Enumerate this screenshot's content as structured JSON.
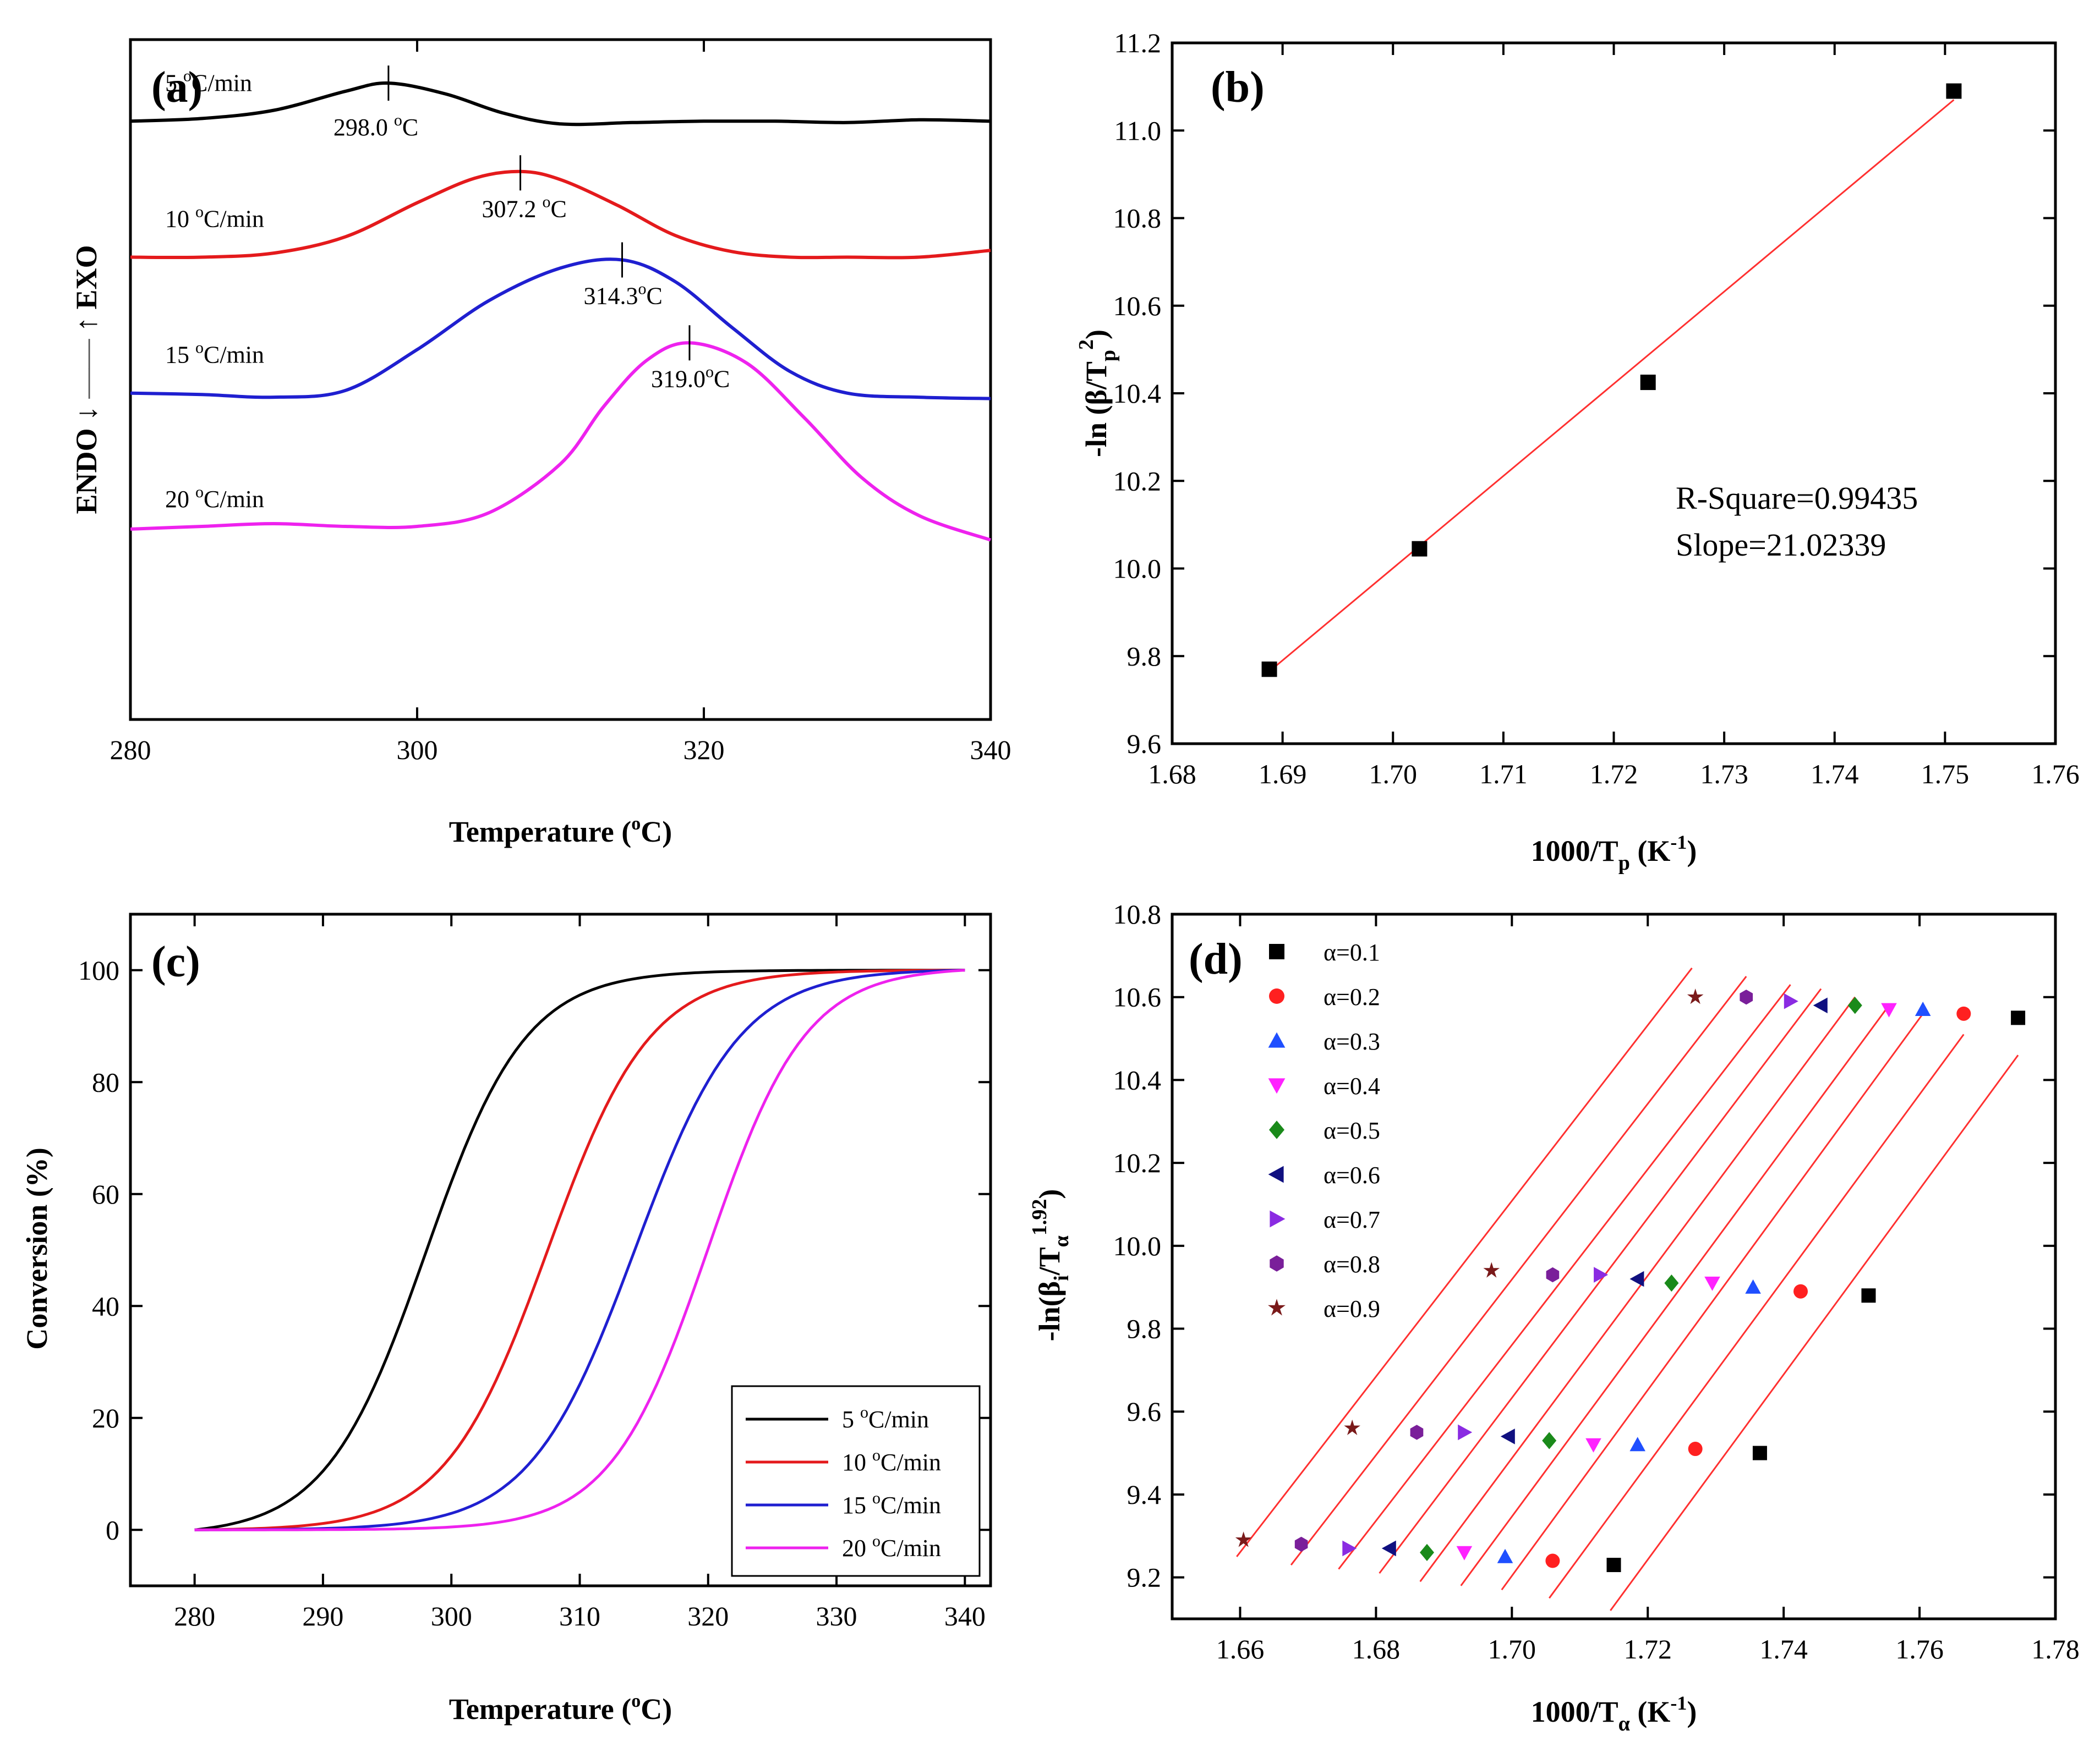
{
  "chart_data": [
    {
      "id": "a",
      "panel_label": "(a)",
      "type": "line",
      "xlabel": "Temperature (°C)",
      "ylabel": "ENDO↓ — ↑EXO",
      "ylabel_left": "ENDO",
      "ylabel_right": "EXO",
      "xlim": [
        280,
        340
      ],
      "xticks": [
        280,
        300,
        320,
        340
      ],
      "ylim": [
        -0.5,
        4.5
      ],
      "yticks_visible": false,
      "series": [
        {
          "name": "5 °C/min",
          "color": "#000000",
          "baseline": 3.9,
          "peak_x": 298.0,
          "peak_height": 0.28,
          "width": 7.5,
          "peak_label": "298.0 °C",
          "points": [
            [
              280,
              3.9
            ],
            [
              285,
              3.92
            ],
            [
              290,
              3.98
            ],
            [
              295,
              4.12
            ],
            [
              298,
              4.18
            ],
            [
              302,
              4.1
            ],
            [
              306,
              3.96
            ],
            [
              310,
              3.88
            ],
            [
              315,
              3.89
            ],
            [
              320,
              3.9
            ],
            [
              325,
              3.9
            ],
            [
              330,
              3.89
            ],
            [
              335,
              3.91
            ],
            [
              340,
              3.9
            ]
          ]
        },
        {
          "name": "10 °C/min",
          "color": "#e41a1c",
          "baseline": 2.9,
          "peak_x": 307.2,
          "peak_height": 0.62,
          "width": 8.5,
          "peak_label": "307.2 °C",
          "points": [
            [
              280,
              2.9
            ],
            [
              285,
              2.9
            ],
            [
              290,
              2.93
            ],
            [
              295,
              3.05
            ],
            [
              300,
              3.3
            ],
            [
              304,
              3.48
            ],
            [
              307.2,
              3.53
            ],
            [
              310,
              3.47
            ],
            [
              314,
              3.28
            ],
            [
              318,
              3.06
            ],
            [
              322,
              2.94
            ],
            [
              326,
              2.9
            ],
            [
              330,
              2.9
            ],
            [
              335,
              2.9
            ],
            [
              340,
              2.95
            ]
          ]
        },
        {
          "name": "15 °C/min",
          "color": "#1f1fd0",
          "baseline": 1.9,
          "peak_x": 314.3,
          "peak_height": 0.98,
          "width": 9.5,
          "peak_label": "314.3°C",
          "points": [
            [
              280,
              1.9
            ],
            [
              285,
              1.89
            ],
            [
              290,
              1.87
            ],
            [
              295,
              1.92
            ],
            [
              300,
              2.22
            ],
            [
              305,
              2.58
            ],
            [
              310,
              2.82
            ],
            [
              314.3,
              2.88
            ],
            [
              318,
              2.72
            ],
            [
              322,
              2.38
            ],
            [
              326,
              2.06
            ],
            [
              330,
              1.9
            ],
            [
              335,
              1.87
            ],
            [
              340,
              1.86
            ]
          ]
        },
        {
          "name": "20 °C/min",
          "color": "#ee22ee",
          "baseline": 0.9,
          "peak_x": 319.0,
          "peak_height": 1.37,
          "width": 10.5,
          "peak_label": "319.0°C",
          "points": [
            [
              280,
              0.9
            ],
            [
              285,
              0.92
            ],
            [
              290,
              0.94
            ],
            [
              295,
              0.92
            ],
            [
              300,
              0.92
            ],
            [
              305,
              1.02
            ],
            [
              310,
              1.38
            ],
            [
              313,
              1.8
            ],
            [
              316,
              2.14
            ],
            [
              319,
              2.27
            ],
            [
              323,
              2.12
            ],
            [
              327,
              1.72
            ],
            [
              331,
              1.28
            ],
            [
              335,
              1.0
            ],
            [
              340,
              0.82
            ]
          ]
        }
      ]
    },
    {
      "id": "b",
      "panel_label": "(b)",
      "type": "scatter",
      "xlabel": "1000/T",
      "xlabel_sub": "p",
      "xlabel_unit": " (K",
      "xlabel_unit_sup": "-1",
      "xlabel_close": ")",
      "ylabel": "-ln (β/T",
      "ylabel_sub": "p",
      "ylabel_sup": "2",
      "ylabel_close": ")",
      "xlim": [
        1.68,
        1.76
      ],
      "xticks": [
        "1.68",
        "1.69",
        "1.70",
        "1.71",
        "1.72",
        "1.73",
        "1.74",
        "1.75",
        "1.76"
      ],
      "ylim": [
        9.6,
        11.2
      ],
      "yticks": [
        "9.6",
        "9.8",
        "10.0",
        "10.2",
        "10.4",
        "10.6",
        "10.8",
        "11.0",
        "11.2"
      ],
      "x": [
        1.6888,
        1.7024,
        1.7231,
        1.7508
      ],
      "y": [
        9.77,
        10.045,
        10.425,
        11.09
      ],
      "fit": {
        "x": [
          1.6888,
          1.7508
        ],
        "y": [
          9.765,
          11.07
        ],
        "color": "#ff3030"
      },
      "annotations": [
        "R-Square=0.99435",
        "Slope=21.02339"
      ]
    },
    {
      "id": "c",
      "panel_label": "(c)",
      "type": "line",
      "xlabel": "Temperature (°C)",
      "ylabel": "Conversion (%)",
      "xlim": [
        275,
        342
      ],
      "xticks": [
        280,
        290,
        300,
        310,
        320,
        330,
        340
      ],
      "ylim": [
        -10,
        110
      ],
      "yticks": [
        0,
        20,
        40,
        60,
        80,
        100
      ],
      "legend_position": "bottom-right",
      "series": [
        {
          "name": "5 °C/min",
          "color": "#000000",
          "midpoint": 298.0,
          "scale": 3.9
        },
        {
          "name": "10 °C/min",
          "color": "#e41a1c",
          "midpoint": 307.5,
          "scale": 4.0
        },
        {
          "name": "15 °C/min",
          "color": "#1f1fd0",
          "midpoint": 314.3,
          "scale": 4.1
        },
        {
          "name": "20 °C/min",
          "color": "#ee22ee",
          "midpoint": 320.0,
          "scale": 3.8
        }
      ]
    },
    {
      "id": "d",
      "panel_label": "(d)",
      "type": "scatter",
      "xlabel": "1000/T",
      "xlabel_sub": "α",
      "xlabel_unit": " (K",
      "xlabel_unit_sup": "-1",
      "xlabel_close": ")",
      "ylabel": "-ln(β",
      "ylabel_sub": "i",
      "ylabel_mid": "/T",
      "ylabel_sub2": "α",
      "ylabel_sup": "1.92",
      "ylabel_close": ")",
      "xlim": [
        1.65,
        1.78
      ],
      "xticks": [
        "1.66",
        "1.68",
        "1.70",
        "1.72",
        "1.74",
        "1.76",
        "1.78"
      ],
      "ylim": [
        9.1,
        10.8
      ],
      "yticks": [
        "9.2",
        "9.4",
        "9.6",
        "9.8",
        "10.0",
        "10.2",
        "10.4",
        "10.6",
        "10.8"
      ],
      "legend_position": "top-left",
      "series": [
        {
          "name": "α=0.1",
          "color": "#000000",
          "marker": "square",
          "x": [
            1.715,
            1.7365,
            1.7525,
            1.7745
          ],
          "y": [
            9.23,
            9.5,
            9.88,
            10.55
          ],
          "fit": [
            [
              1.7145,
              9.12
            ],
            [
              1.7745,
              10.46
            ]
          ]
        },
        {
          "name": "α=0.2",
          "color": "#ff2020",
          "marker": "circle",
          "x": [
            1.706,
            1.727,
            1.7425,
            1.7665
          ],
          "y": [
            9.24,
            9.51,
            9.89,
            10.56
          ],
          "fit": [
            [
              1.7055,
              9.15
            ],
            [
              1.7665,
              10.51
            ]
          ]
        },
        {
          "name": "α=0.3",
          "color": "#1f4fff",
          "marker": "triangle-up",
          "x": [
            1.699,
            1.7185,
            1.7355,
            1.7605
          ],
          "y": [
            9.25,
            9.52,
            9.9,
            10.57
          ],
          "fit": [
            [
              1.6985,
              9.17
            ],
            [
              1.7605,
              10.56
            ]
          ]
        },
        {
          "name": "α=0.4",
          "color": "#ff22ff",
          "marker": "triangle-down",
          "x": [
            1.693,
            1.712,
            1.7295,
            1.7555
          ],
          "y": [
            9.26,
            9.52,
            9.91,
            10.57
          ],
          "fit": [
            [
              1.6925,
              9.18
            ],
            [
              1.7555,
              10.58
            ]
          ]
        },
        {
          "name": "α=0.5",
          "color": "#1a8a1a",
          "marker": "diamond",
          "x": [
            1.6875,
            1.7055,
            1.7235,
            1.7505
          ],
          "y": [
            9.26,
            9.53,
            9.91,
            10.58
          ],
          "fit": [
            [
              1.6865,
              9.19
            ],
            [
              1.7505,
              10.6
            ]
          ]
        },
        {
          "name": "α=0.6",
          "color": "#101080",
          "marker": "triangle-left",
          "x": [
            1.682,
            1.6995,
            1.7185,
            1.7455
          ],
          "y": [
            9.27,
            9.54,
            9.92,
            10.58
          ],
          "fit": [
            [
              1.6805,
              9.21
            ],
            [
              1.7455,
              10.62
            ]
          ]
        },
        {
          "name": "α=0.7",
          "color": "#8a2be2",
          "marker": "triangle-right",
          "x": [
            1.676,
            1.693,
            1.713,
            1.741
          ],
          "y": [
            9.27,
            9.55,
            9.93,
            10.59
          ],
          "fit": [
            [
              1.6745,
              9.22
            ],
            [
              1.741,
              10.63
            ]
          ]
        },
        {
          "name": "α=0.8",
          "color": "#7a1f9a",
          "marker": "hexagon",
          "x": [
            1.669,
            1.686,
            1.706,
            1.7345
          ],
          "y": [
            9.28,
            9.55,
            9.93,
            10.6
          ],
          "fit": [
            [
              1.6675,
              9.23
            ],
            [
              1.7345,
              10.65
            ]
          ]
        },
        {
          "name": "α=0.9",
          "color": "#7a1a1a",
          "marker": "star",
          "x": [
            1.6605,
            1.6765,
            1.697,
            1.727
          ],
          "y": [
            9.29,
            9.56,
            9.94,
            10.6
          ],
          "fit": [
            [
              1.6595,
              9.25
            ],
            [
              1.7265,
              10.67
            ]
          ]
        }
      ]
    }
  ]
}
